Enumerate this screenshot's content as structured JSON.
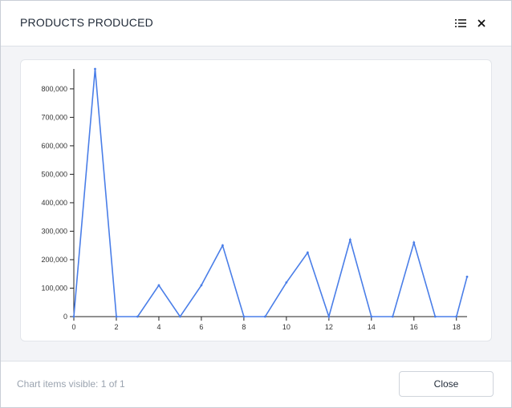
{
  "header": {
    "title": "PRODUCTS PRODUCED",
    "list_icon": "list-icon",
    "close_icon": "close-icon"
  },
  "footer": {
    "status": "Chart items visible: 1 of 1",
    "close_label": "Close"
  },
  "colors": {
    "line": "#4a7ee8",
    "axis": "#222222",
    "body_bg": "#f3f4f7"
  },
  "chart_data": {
    "type": "line",
    "title": "",
    "xlabel": "",
    "ylabel": "",
    "xlim": [
      0,
      18.5
    ],
    "ylim": [
      0,
      870000
    ],
    "grid": false,
    "x_ticks": [
      0,
      2,
      4,
      6,
      8,
      10,
      12,
      14,
      16,
      18
    ],
    "x_tick_labels": [
      "0",
      "2",
      "4",
      "6",
      "8",
      "10",
      "12",
      "14",
      "16",
      "18"
    ],
    "y_ticks": [
      0,
      100000,
      200000,
      300000,
      400000,
      500000,
      600000,
      700000,
      800000
    ],
    "y_tick_labels": [
      "0",
      "100,000",
      "200,000",
      "300,000",
      "400,000",
      "500,000",
      "600,000",
      "700,000",
      "800,000"
    ],
    "series": [
      {
        "x": [
          0,
          1,
          2,
          3,
          4,
          5,
          6,
          7,
          8,
          9,
          10,
          11,
          12,
          13,
          14,
          15,
          16,
          17,
          18,
          18.5
        ],
        "values": [
          0,
          870000,
          0,
          0,
          110000,
          0,
          110000,
          250000,
          0,
          0,
          120000,
          225000,
          0,
          270000,
          0,
          0,
          260000,
          0,
          0,
          140000
        ]
      }
    ]
  }
}
